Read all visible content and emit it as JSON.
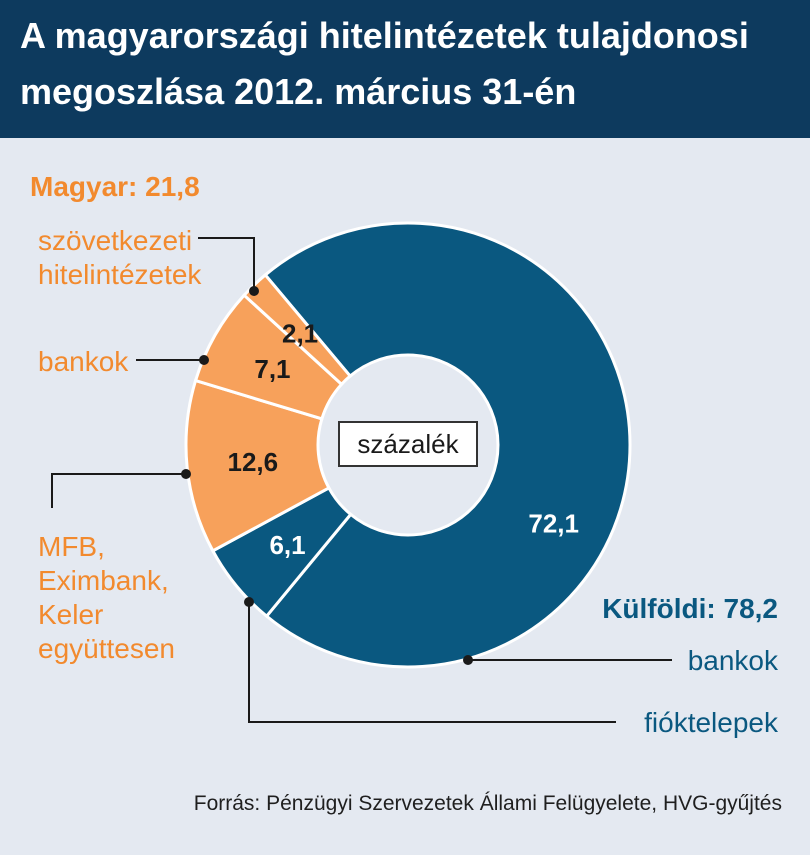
{
  "title_line1": "A magyarországi hitelintézetek tulajdonosi",
  "title_line2": "megoszlása 2012. március 31-én",
  "source": "Forrás: Pénzügyi Szervezetek Állami Felügyelete, HVG-gyűjtés",
  "colors": {
    "header_bg": "#0d3a5e",
    "domestic": "#f7a15b",
    "foreign": "#0a5880",
    "domestic_text": "#f28a2e",
    "foreign_text": "#0a5880"
  },
  "chart_data": {
    "type": "pie",
    "unit_label": "százalék",
    "groups": [
      {
        "name": "Magyar",
        "label": "Magyar: 21,8",
        "total": 21.8
      },
      {
        "name": "Külföldi",
        "label": "Külföldi: 78,2",
        "total": 78.2
      }
    ],
    "slices": [
      {
        "value_label": "72,1",
        "value": 72.1,
        "group": "Külföldi",
        "legend": [
          "bankok"
        ]
      },
      {
        "value_label": "6,1",
        "value": 6.1,
        "group": "Külföldi",
        "legend": [
          "fióktelepek"
        ]
      },
      {
        "value_label": "12,6",
        "value": 12.6,
        "group": "Magyar",
        "legend": [
          "MFB,",
          "Eximbank,",
          "Keler",
          "együttesen"
        ]
      },
      {
        "value_label": "7,1",
        "value": 7.1,
        "group": "Magyar",
        "legend": [
          "bankok"
        ]
      },
      {
        "value_label": "2,1",
        "value": 2.1,
        "group": "Magyar",
        "legend": [
          "szövetkezeti",
          "hitelintézetek"
        ]
      }
    ]
  }
}
